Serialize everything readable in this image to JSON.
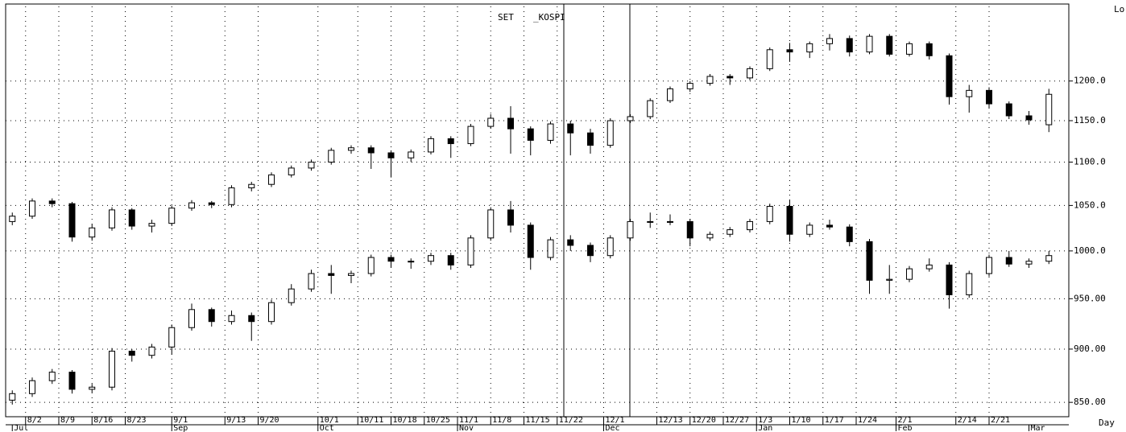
{
  "chart_data": {
    "type": "candlestick",
    "y_label": "Lo",
    "x_label": "Day",
    "xlim": [
      -1,
      159
    ],
    "ylim": [
      837,
      1300
    ],
    "y_scale": "log",
    "grid": true,
    "yticks": [
      {
        "value": 850,
        "label": "850.00"
      },
      {
        "value": 900,
        "label": "900.00"
      },
      {
        "value": 950,
        "label": "950.00"
      },
      {
        "value": 1000,
        "label": "1000.0"
      },
      {
        "value": 1050,
        "label": "1050.0"
      },
      {
        "value": 1100,
        "label": "1100.0"
      },
      {
        "value": 1150,
        "label": "1150.0"
      },
      {
        "value": 1200,
        "label": "1200.0"
      }
    ],
    "xticks": [
      {
        "value": 2,
        "label": "8/2"
      },
      {
        "value": 7,
        "label": "8/9"
      },
      {
        "value": 12,
        "label": "8/16"
      },
      {
        "value": 17,
        "label": "8/23"
      },
      {
        "value": 24,
        "label": "9/1"
      },
      {
        "value": 32,
        "label": "9/13"
      },
      {
        "value": 37,
        "label": "9/20"
      },
      {
        "value": 46,
        "label": "10/1"
      },
      {
        "value": 52,
        "label": "10/11"
      },
      {
        "value": 57,
        "label": "10/18"
      },
      {
        "value": 62,
        "label": "10/25"
      },
      {
        "value": 67,
        "label": "11/1"
      },
      {
        "value": 72,
        "label": "11/8"
      },
      {
        "value": 77,
        "label": "11/15"
      },
      {
        "value": 82,
        "label": "11/22"
      },
      {
        "value": 89,
        "label": "12/1"
      },
      {
        "value": 97,
        "label": "12/13"
      },
      {
        "value": 102,
        "label": "12/20"
      },
      {
        "value": 107,
        "label": "12/27"
      },
      {
        "value": 112,
        "label": "1/3"
      },
      {
        "value": 117,
        "label": "1/10"
      },
      {
        "value": 122,
        "label": "1/17"
      },
      {
        "value": 127,
        "label": "1/24"
      },
      {
        "value": 133,
        "label": "2/1"
      },
      {
        "value": 142,
        "label": "2/14"
      },
      {
        "value": 147,
        "label": "2/21"
      }
    ],
    "month_ticks": [
      {
        "value": 0,
        "label": "Jul"
      },
      {
        "value": 24,
        "label": "Sep"
      },
      {
        "value": 46,
        "label": "Oct"
      },
      {
        "value": 67,
        "label": "Nov"
      },
      {
        "value": 89,
        "label": "Dec"
      },
      {
        "value": 112,
        "label": "Jan"
      },
      {
        "value": 133,
        "label": "Feb"
      },
      {
        "value": 153,
        "label": "Mar"
      }
    ],
    "x": [
      0,
      3,
      6,
      9,
      12,
      15,
      18,
      21,
      24,
      27,
      30,
      33,
      36,
      39,
      42,
      45,
      48,
      51,
      54,
      57,
      60,
      63,
      66,
      69,
      72,
      75,
      78,
      81,
      84,
      87,
      90,
      93,
      96,
      99,
      102,
      105,
      108,
      111,
      114,
      117,
      120,
      123,
      126,
      129,
      132,
      135,
      138,
      141,
      144,
      147,
      150,
      153,
      156
    ],
    "series": [
      {
        "name": "SET",
        "color": "#000000",
        "candles": [
          [
            1032,
            1042,
            1028,
            1038
          ],
          [
            1038,
            1058,
            1035,
            1055
          ],
          [
            1055,
            1058,
            1048,
            1052
          ],
          [
            1052,
            1054,
            1010,
            1015
          ],
          [
            1015,
            1029,
            1011,
            1025
          ],
          [
            1025,
            1048,
            1022,
            1045
          ],
          [
            1045,
            1047,
            1023,
            1027
          ],
          [
            1027,
            1034,
            1020,
            1030
          ],
          [
            1030,
            1050,
            1027,
            1047
          ],
          [
            1047,
            1056,
            1044,
            1053
          ],
          [
            1053,
            1055,
            1047,
            1051
          ],
          [
            1051,
            1073,
            1048,
            1070
          ],
          [
            1070,
            1077,
            1066,
            1074
          ],
          [
            1074,
            1088,
            1071,
            1085
          ],
          [
            1085,
            1096,
            1082,
            1093
          ],
          [
            1093,
            1103,
            1090,
            1100
          ],
          [
            1100,
            1117,
            1097,
            1114
          ],
          [
            1114,
            1120,
            1110,
            1117
          ],
          [
            1117,
            1120,
            1092,
            1111
          ],
          [
            1111,
            1114,
            1082,
            1105
          ],
          [
            1105,
            1115,
            1100,
            1112
          ],
          [
            1112,
            1131,
            1109,
            1128
          ],
          [
            1128,
            1131,
            1105,
            1122
          ],
          [
            1122,
            1146,
            1119,
            1143
          ],
          [
            1143,
            1158,
            1140,
            1153
          ],
          [
            1153,
            1168,
            1110,
            1140
          ],
          [
            1140,
            1143,
            1108,
            1126
          ],
          [
            1126,
            1149,
            1122,
            1146
          ],
          [
            1146,
            1150,
            1108,
            1135
          ],
          [
            1135,
            1140,
            1110,
            1120
          ],
          [
            1120,
            1153,
            1117,
            1150
          ],
          [
            1150,
            1158,
            1147,
            1155
          ],
          [
            1155,
            1178,
            1152,
            1175
          ],
          [
            1175,
            1193,
            1172,
            1190
          ],
          [
            1190,
            1200,
            1186,
            1197
          ],
          [
            1197,
            1209,
            1194,
            1206
          ],
          [
            1206,
            1209,
            1195,
            1204
          ],
          [
            1204,
            1219,
            1201,
            1216
          ],
          [
            1216,
            1244,
            1213,
            1241
          ],
          [
            1241,
            1250,
            1225,
            1238
          ],
          [
            1238,
            1252,
            1230,
            1249
          ],
          [
            1249,
            1262,
            1240,
            1256
          ],
          [
            1256,
            1260,
            1232,
            1238
          ],
          [
            1238,
            1262,
            1235,
            1259
          ],
          [
            1259,
            1262,
            1232,
            1235
          ],
          [
            1235,
            1252,
            1232,
            1249
          ],
          [
            1249,
            1252,
            1228,
            1233
          ],
          [
            1233,
            1236,
            1170,
            1180
          ],
          [
            1180,
            1195,
            1160,
            1188
          ],
          [
            1188,
            1192,
            1165,
            1171
          ],
          [
            1171,
            1174,
            1152,
            1156
          ],
          [
            1156,
            1162,
            1145,
            1151
          ],
          [
            1145,
            1190,
            1136,
            1183
          ]
        ]
      },
      {
        "name": "_KOSPI",
        "color": "#000000",
        "candles": [
          [
            852,
            861,
            848,
            858
          ],
          [
            858,
            873,
            855,
            870
          ],
          [
            870,
            881,
            867,
            878
          ],
          [
            878,
            880,
            858,
            862
          ],
          [
            862,
            867,
            859,
            864
          ],
          [
            864,
            901,
            861,
            898
          ],
          [
            898,
            900,
            888,
            894
          ],
          [
            894,
            905,
            891,
            902
          ],
          [
            902,
            924,
            895,
            921
          ],
          [
            921,
            945,
            918,
            939
          ],
          [
            939,
            941,
            922,
            927
          ],
          [
            927,
            938,
            924,
            933
          ],
          [
            933,
            936,
            908,
            927
          ],
          [
            927,
            949,
            924,
            946
          ],
          [
            946,
            965,
            943,
            960
          ],
          [
            960,
            980,
            957,
            976
          ],
          [
            976,
            985,
            955,
            974
          ],
          [
            974,
            979,
            966,
            976
          ],
          [
            976,
            996,
            973,
            993
          ],
          [
            993,
            996,
            982,
            989
          ],
          [
            989,
            992,
            981,
            989
          ],
          [
            989,
            998,
            985,
            995
          ],
          [
            995,
            998,
            980,
            985
          ],
          [
            985,
            1017,
            982,
            1014
          ],
          [
            1014,
            1048,
            1011,
            1045
          ],
          [
            1045,
            1055,
            1020,
            1028
          ],
          [
            1028,
            1031,
            980,
            993
          ],
          [
            993,
            1015,
            990,
            1012
          ],
          [
            1012,
            1017,
            1000,
            1006
          ],
          [
            1006,
            1009,
            988,
            995
          ],
          [
            995,
            1017,
            992,
            1014
          ],
          [
            1014,
            1035,
            1011,
            1032
          ],
          [
            1032,
            1042,
            1025,
            1032
          ],
          [
            1032,
            1040,
            1028,
            1032
          ],
          [
            1032,
            1035,
            1005,
            1014
          ],
          [
            1014,
            1021,
            1011,
            1018
          ],
          [
            1018,
            1026,
            1015,
            1023
          ],
          [
            1023,
            1035,
            1020,
            1032
          ],
          [
            1032,
            1052,
            1029,
            1049
          ],
          [
            1049,
            1056,
            1010,
            1018
          ],
          [
            1018,
            1031,
            1015,
            1028
          ],
          [
            1028,
            1034,
            1023,
            1026
          ],
          [
            1026,
            1029,
            1005,
            1010
          ],
          [
            1010,
            1013,
            955,
            969
          ],
          [
            969,
            985,
            955,
            970
          ],
          [
            970,
            984,
            967,
            981
          ],
          [
            981,
            992,
            978,
            985
          ],
          [
            985,
            988,
            940,
            954
          ],
          [
            954,
            979,
            951,
            976
          ],
          [
            976,
            996,
            973,
            993
          ],
          [
            993,
            1000,
            983,
            986
          ],
          [
            986,
            992,
            982,
            989
          ],
          [
            989,
            1000,
            986,
            995
          ]
        ]
      }
    ]
  }
}
